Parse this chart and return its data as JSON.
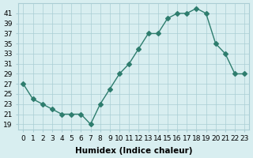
{
  "x": [
    0,
    1,
    2,
    3,
    4,
    5,
    6,
    7,
    8,
    9,
    10,
    11,
    12,
    13,
    14,
    15,
    16,
    17,
    18,
    19,
    20,
    21,
    22,
    23
  ],
  "y": [
    27,
    24,
    23,
    22,
    21,
    21,
    21,
    19,
    23,
    26,
    29,
    31,
    34,
    37,
    37,
    40,
    41,
    41,
    42,
    41,
    35,
    33,
    29,
    29
  ],
  "line_color": "#2e7d6e",
  "marker": "D",
  "marker_size": 3,
  "bg_color": "#d8eef0",
  "grid_color": "#aacdd4",
  "xlabel": "Humidex (Indice chaleur)",
  "xlim": [
    -0.5,
    23.5
  ],
  "ylim": [
    18,
    43
  ],
  "yticks": [
    19,
    21,
    23,
    25,
    27,
    29,
    31,
    33,
    35,
    37,
    39,
    41
  ],
  "xticks": [
    0,
    1,
    2,
    3,
    4,
    5,
    6,
    7,
    8,
    9,
    10,
    11,
    12,
    13,
    14,
    15,
    16,
    17,
    18,
    19,
    20,
    21,
    22,
    23
  ],
  "xlabel_fontsize": 7.5,
  "tick_fontsize": 6.5
}
